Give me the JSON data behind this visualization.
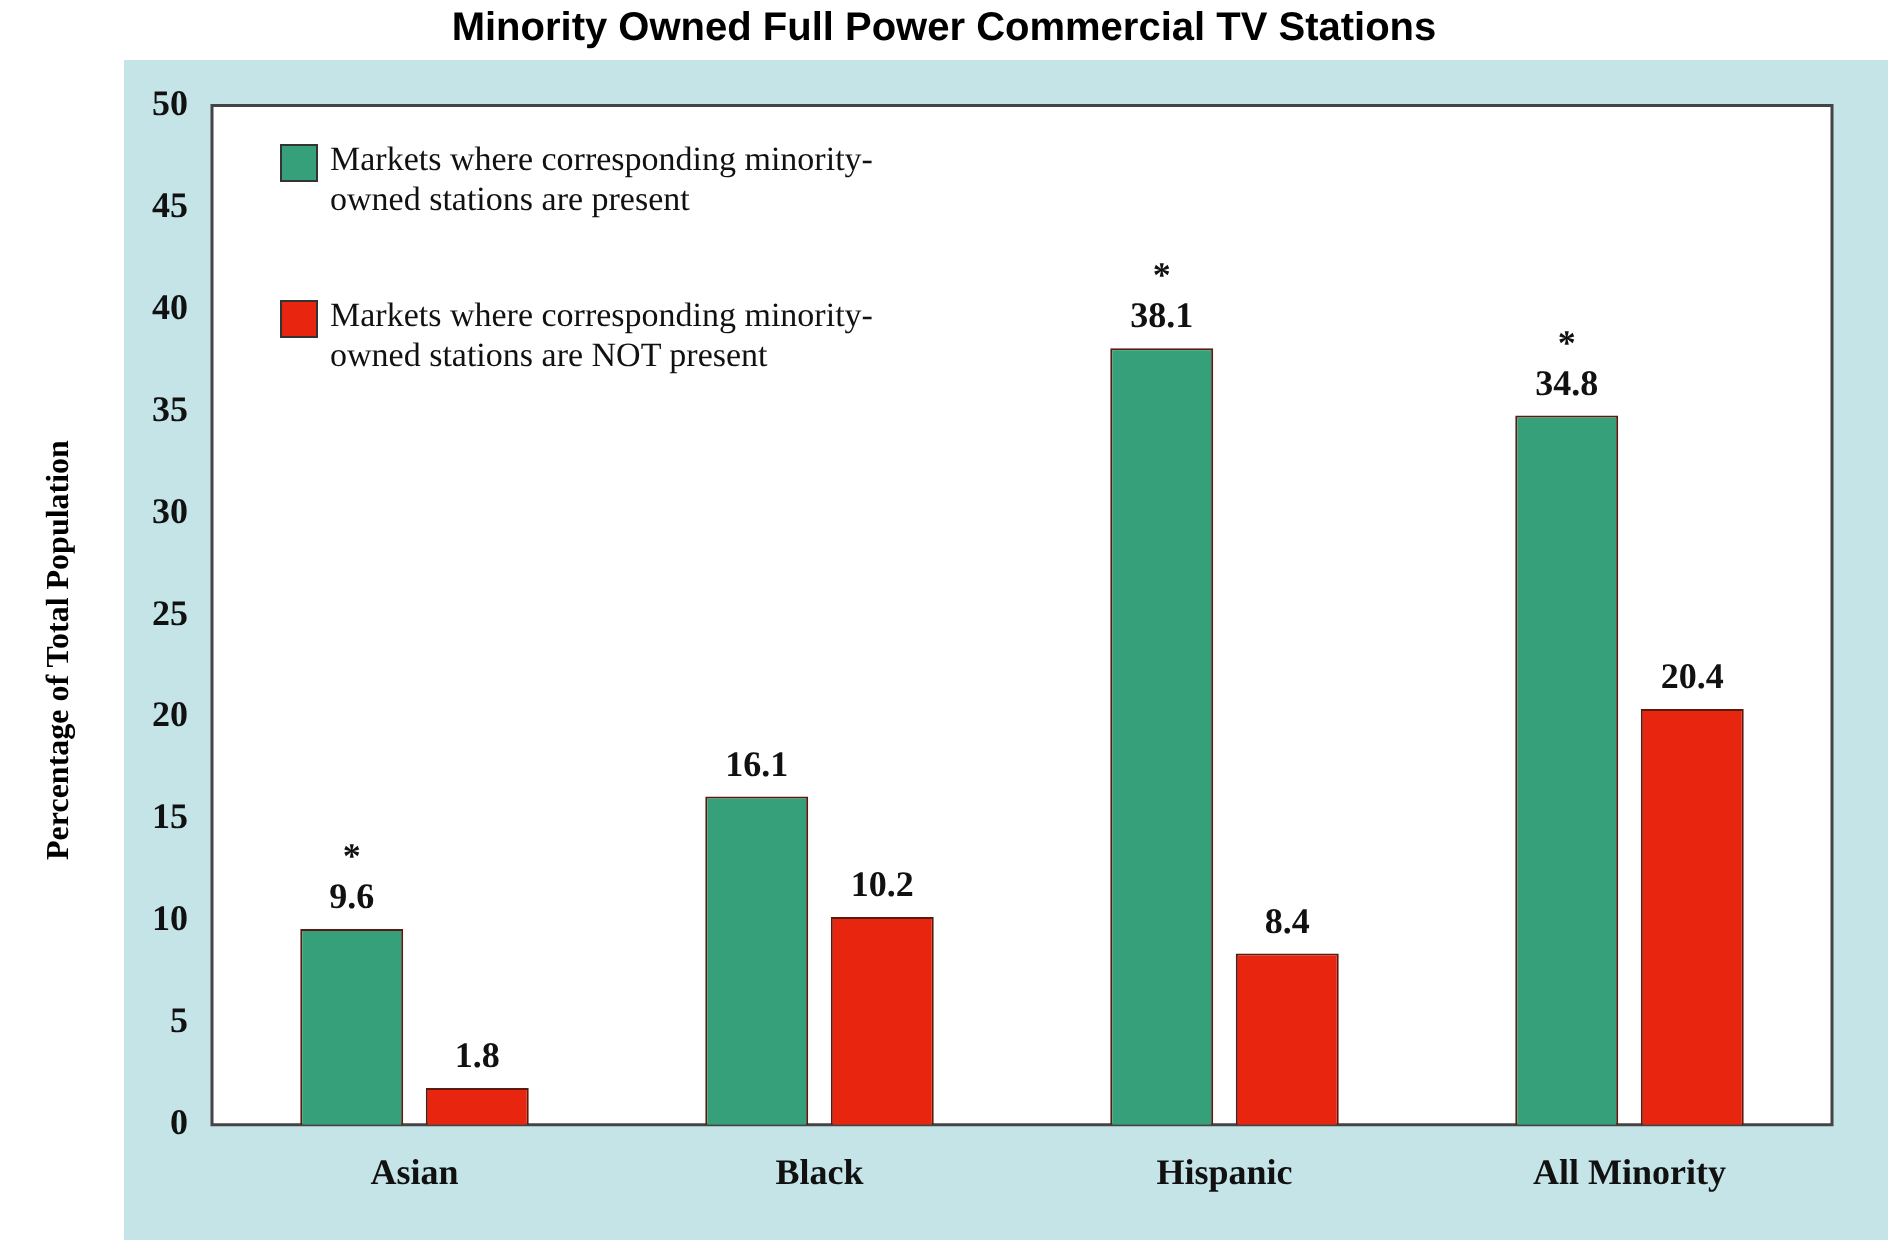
{
  "chart_data": {
    "type": "bar",
    "title": "Minority Owned Full Power Commercial TV Stations",
    "ylabel": "Percentage of Total Population",
    "categories": [
      "Asian",
      "Black",
      "Hispanic",
      "All Minority"
    ],
    "series": [
      {
        "name": "Markets where corresponding minority-owned stations are present",
        "color": "#35a07a",
        "values": [
          9.6,
          16.1,
          38.1,
          34.8
        ],
        "value_labels": [
          "*\n9.6",
          "16.1",
          "*\n38.1",
          "*\n34.8"
        ]
      },
      {
        "name": "Markets where corresponding minority-owned stations are NOT present",
        "color": "#e8260f",
        "values": [
          1.8,
          10.2,
          8.4,
          20.4
        ],
        "value_labels": [
          "1.8",
          "10.2",
          "8.4",
          "20.4"
        ]
      }
    ],
    "ylim": [
      0,
      50
    ],
    "yticks": [
      0,
      5,
      10,
      15,
      20,
      25,
      30,
      35,
      40,
      45,
      50
    ],
    "grid": false,
    "legend": "top left"
  }
}
